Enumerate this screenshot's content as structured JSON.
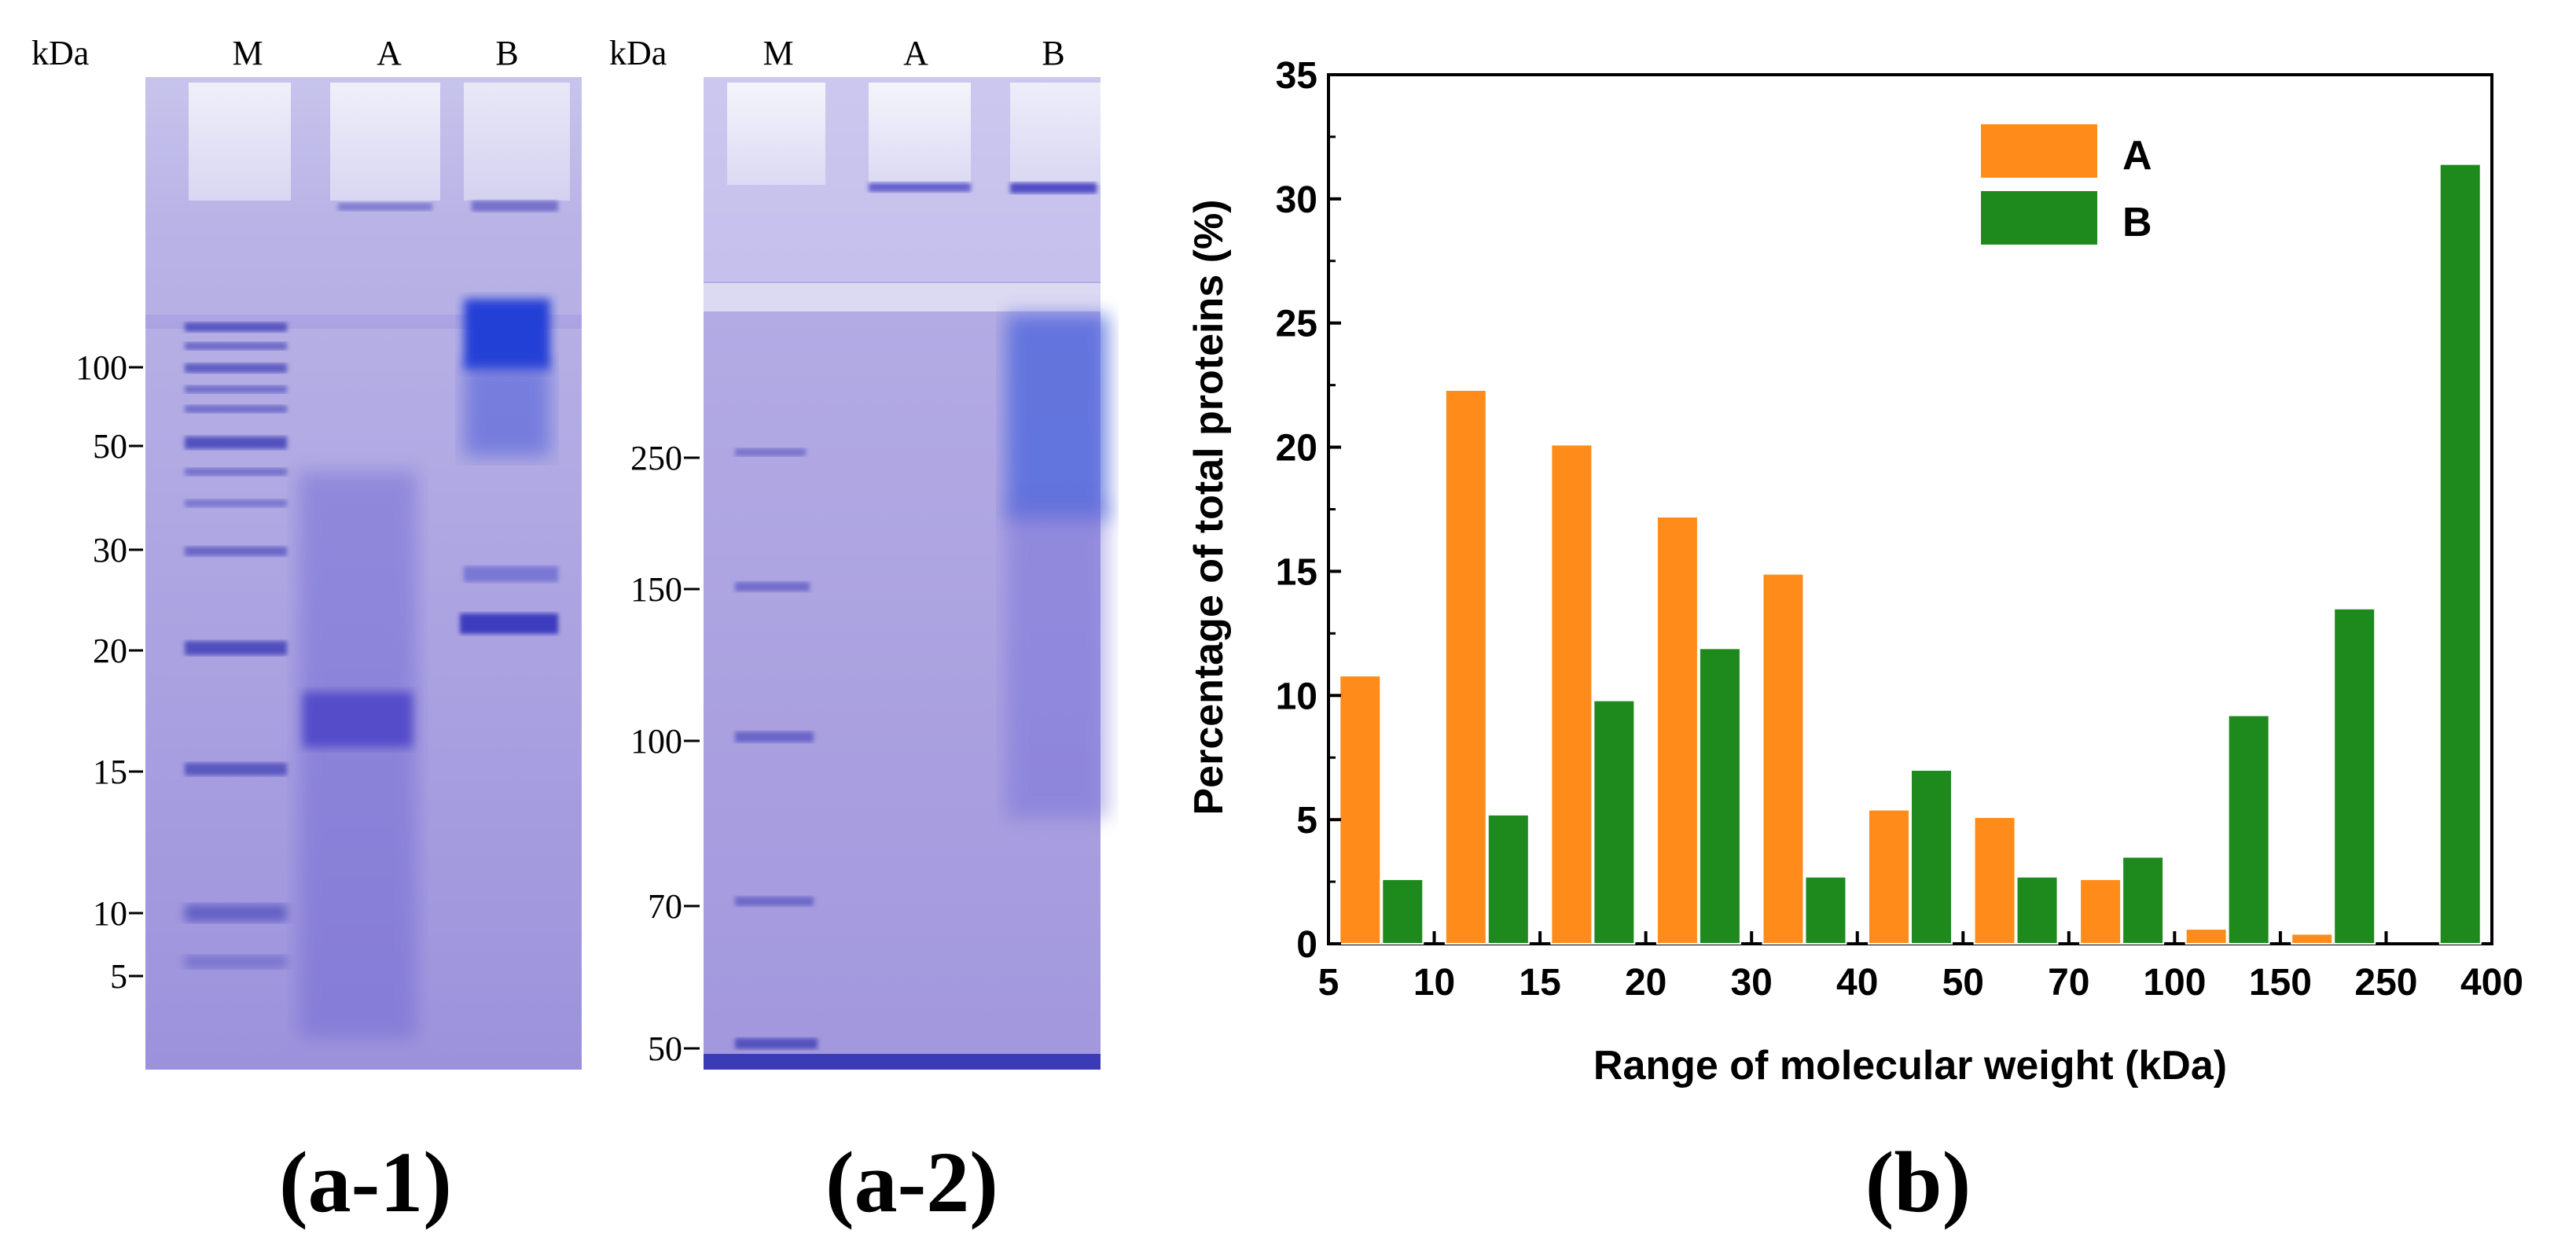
{
  "gel1": {
    "unit": "kDa",
    "lanes": [
      "M",
      "A",
      "B"
    ],
    "markers": [
      "100",
      "50",
      "30",
      "20",
      "15",
      "10",
      "5"
    ],
    "caption": "(a-1)"
  },
  "gel2": {
    "unit": "kDa",
    "lanes": [
      "M",
      "A",
      "B"
    ],
    "markers": [
      "250",
      "150",
      "100",
      "70",
      "50"
    ],
    "caption": "(a-2)"
  },
  "chart_caption": "(b)",
  "chart_data": {
    "type": "bar",
    "title": "",
    "xlabel": "Range of molecular weight (kDa)",
    "ylabel": "Percentage of total proteins (%)",
    "ylim": [
      0,
      35
    ],
    "yticks": [
      "0",
      "5",
      "10",
      "15",
      "20",
      "25",
      "30",
      "35"
    ],
    "xticks": [
      "5",
      "10",
      "15",
      "20",
      "30",
      "40",
      "50",
      "70",
      "100",
      "150",
      "250",
      "400"
    ],
    "categories": [
      "5-10",
      "10-15",
      "15-20",
      "20-30",
      "30-40",
      "40-50",
      "50-70",
      "70-100",
      "100-150",
      "150-250",
      "250-400"
    ],
    "series": [
      {
        "name": "A",
        "color": "#ff8c1a",
        "values": [
          10.8,
          22.3,
          20.1,
          17.2,
          14.9,
          5.4,
          5.1,
          2.6,
          0.6,
          0.4,
          0
        ]
      },
      {
        "name": "B",
        "color": "#1e8a1e",
        "values": [
          2.6,
          5.2,
          9.8,
          11.9,
          2.7,
          7.0,
          2.7,
          3.5,
          9.2,
          13.5,
          31.4
        ]
      }
    ],
    "legend_position": "top-center"
  }
}
